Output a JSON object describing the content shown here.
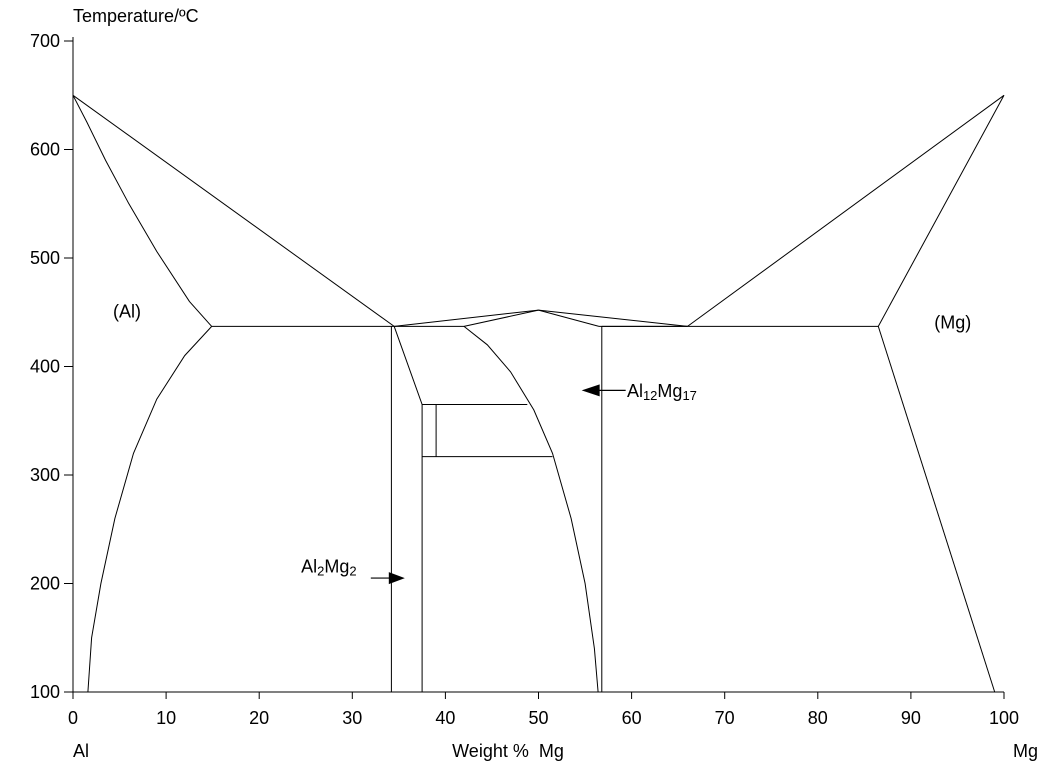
{
  "chart_data": {
    "type": "phase-diagram",
    "ylabel": "Temperature/ºC",
    "xlabel": "Weight %  Mg",
    "x_left_label": "Al",
    "x_right_label": "Mg",
    "xlim": [
      0,
      100
    ],
    "ylim": [
      100,
      700
    ],
    "x_ticks": [
      0,
      10,
      20,
      30,
      40,
      50,
      60,
      70,
      80,
      90,
      100
    ],
    "y_ticks": [
      100,
      200,
      300,
      400,
      500,
      600,
      700
    ],
    "regions": [
      {
        "label": "(Al)",
        "x": 5.8,
        "y": 445
      },
      {
        "label": "(Mg)",
        "x": 94.5,
        "y": 435
      }
    ],
    "phase_labels": [
      {
        "label_main": "Al",
        "sub1": "12",
        "mid": "Mg",
        "sub2": "17",
        "arrow_to_x": 57,
        "arrow_to_y": 378,
        "text_x": 59.5,
        "text_y": 372
      },
      {
        "label_main": "Al",
        "sub1": "2",
        "mid": "Mg",
        "sub2": "2",
        "arrow_to_x": 36.5,
        "arrow_to_y": 205,
        "text_x": 24.5,
        "text_y": 210
      }
    ],
    "lines": [
      {
        "name": "al-liquidus",
        "points": [
          [
            0,
            650
          ],
          [
            34.5,
            437
          ]
        ]
      },
      {
        "name": "al-solidus",
        "points": [
          [
            0,
            650
          ],
          [
            1.5,
            625
          ],
          [
            3.5,
            590
          ],
          [
            6,
            550
          ],
          [
            9,
            506
          ],
          [
            12.5,
            460
          ],
          [
            14.9,
            437
          ]
        ]
      },
      {
        "name": "al-solvus",
        "points": [
          [
            14.9,
            437
          ],
          [
            12,
            410
          ],
          [
            9,
            370
          ],
          [
            6.5,
            320
          ],
          [
            4.5,
            260
          ],
          [
            3,
            200
          ],
          [
            2,
            150
          ],
          [
            1.6,
            100
          ]
        ]
      },
      {
        "name": "eutectic-al-side",
        "points": [
          [
            14.9,
            437
          ],
          [
            34.5,
            437
          ]
        ]
      },
      {
        "name": "al3mg2-left-boundary",
        "points": [
          [
            34.2,
            437
          ],
          [
            34.2,
            100
          ]
        ]
      },
      {
        "name": "beta-liquidus-left",
        "points": [
          [
            34.5,
            437
          ],
          [
            50,
            452
          ]
        ]
      },
      {
        "name": "beta-eutectic-line",
        "points": [
          [
            34.5,
            437
          ],
          [
            42,
            437
          ]
        ]
      },
      {
        "name": "beta-solidus-left",
        "points": [
          [
            42,
            437
          ],
          [
            50,
            452
          ]
        ]
      },
      {
        "name": "beta-left-boundary",
        "points": [
          [
            34.5,
            437
          ],
          [
            37.5,
            365
          ],
          [
            37.5,
            100
          ]
        ]
      },
      {
        "name": "gamma-solvus",
        "points": [
          [
            42,
            437
          ],
          [
            44.5,
            420
          ],
          [
            47,
            395
          ],
          [
            49.5,
            360
          ],
          [
            51.5,
            320
          ],
          [
            53.5,
            260
          ],
          [
            55,
            200
          ],
          [
            56,
            140
          ],
          [
            56.4,
            100
          ]
        ]
      },
      {
        "name": "transition-upper",
        "points": [
          [
            37.5,
            365
          ],
          [
            48.8,
            365
          ]
        ]
      },
      {
        "name": "transition-lower",
        "points": [
          [
            37.5,
            317
          ],
          [
            51.5,
            317
          ]
        ]
      },
      {
        "name": "transition-inner-vertical",
        "points": [
          [
            39,
            365
          ],
          [
            39,
            317
          ]
        ]
      },
      {
        "name": "gamma-liquidus-right",
        "points": [
          [
            50,
            452
          ],
          [
            66,
            437
          ]
        ]
      },
      {
        "name": "gamma-solidus-right",
        "points": [
          [
            50,
            452
          ],
          [
            56.5,
            437
          ]
        ]
      },
      {
        "name": "gamma-eutectic-line",
        "points": [
          [
            56.5,
            437
          ],
          [
            66,
            437
          ]
        ]
      },
      {
        "name": "gamma-right-boundary",
        "points": [
          [
            56.8,
            437
          ],
          [
            56.8,
            100
          ]
        ]
      },
      {
        "name": "mg-eutectic-line",
        "points": [
          [
            56.8,
            437
          ],
          [
            86.5,
            437
          ]
        ]
      },
      {
        "name": "mg-liquidus",
        "points": [
          [
            66,
            437
          ],
          [
            100,
            650
          ]
        ]
      },
      {
        "name": "mg-solidus",
        "points": [
          [
            86.5,
            437
          ],
          [
            100,
            650
          ]
        ]
      },
      {
        "name": "mg-solvus",
        "points": [
          [
            86.5,
            437
          ],
          [
            99,
            100
          ]
        ]
      }
    ]
  }
}
